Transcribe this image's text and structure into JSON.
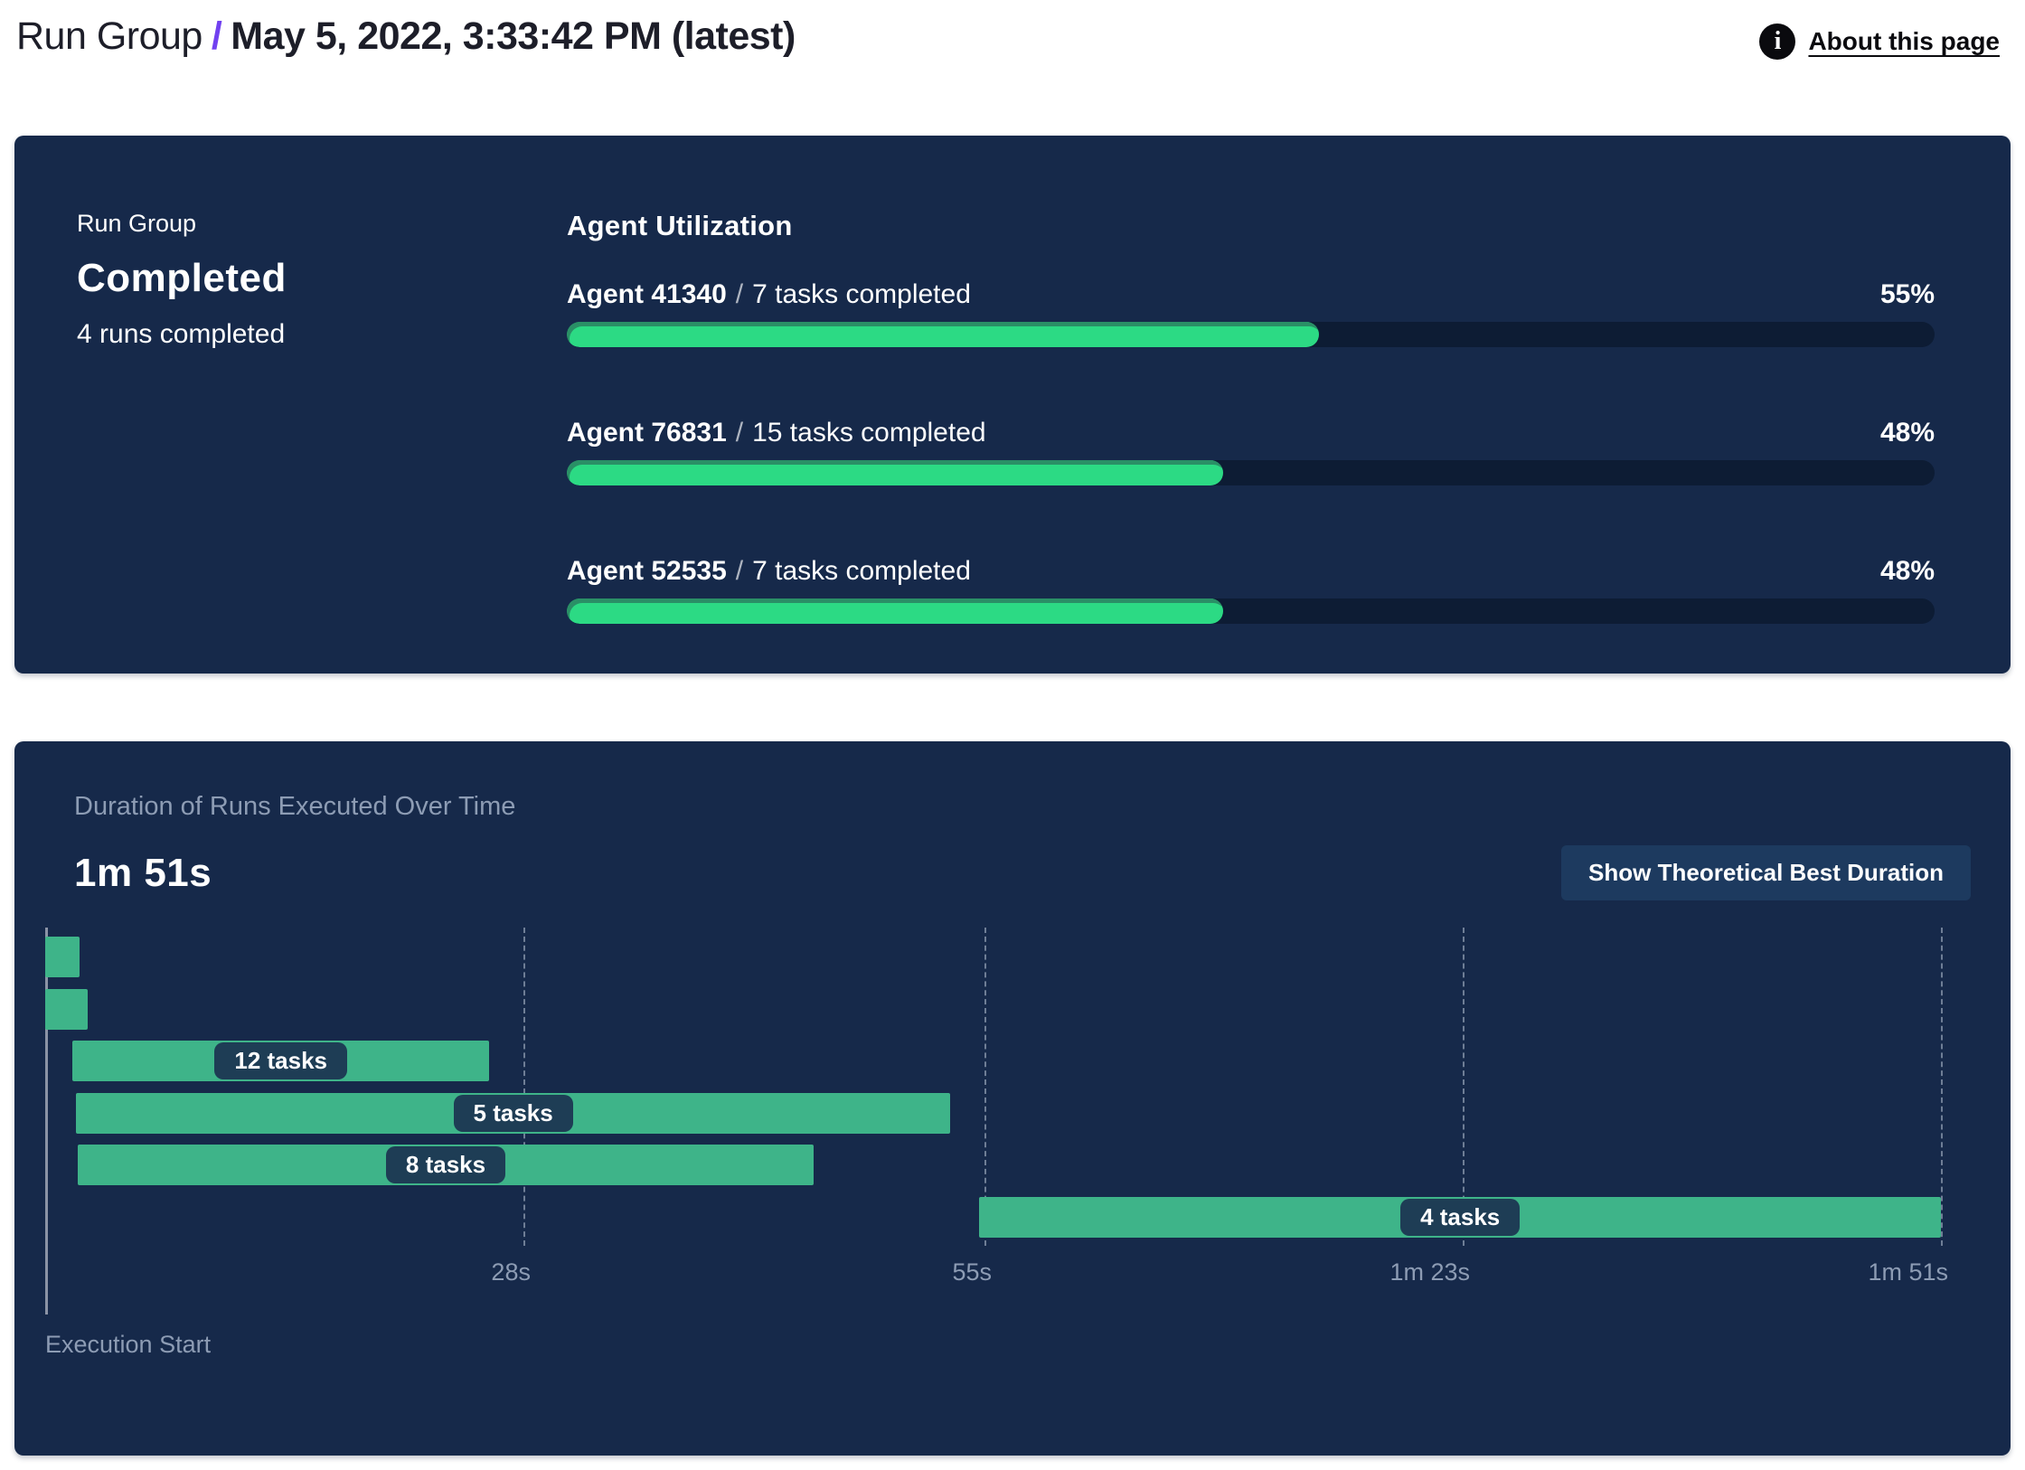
{
  "header": {
    "breadcrumb_root": "Run Group",
    "separator": "/",
    "title": "May 5, 2022, 3:33:42 PM (latest)",
    "about_link": "About this page",
    "info_icon": "info-icon"
  },
  "summary_card": {
    "eyebrow": "Run Group",
    "status": "Completed",
    "subtext": "4 runs completed",
    "utilization_title": "Agent Utilization",
    "agent_separator": "/",
    "agents": [
      {
        "name": "Agent 41340",
        "tasks": "7 tasks completed",
        "percent": 55,
        "percent_label": "55%"
      },
      {
        "name": "Agent 76831",
        "tasks": "15 tasks completed",
        "percent": 48,
        "percent_label": "48%"
      },
      {
        "name": "Agent 52535",
        "tasks": "7 tasks completed",
        "percent": 48,
        "percent_label": "48%"
      }
    ]
  },
  "duration_card": {
    "title": "Duration of Runs Executed Over Time",
    "total_duration": "1m 51s",
    "button_label": "Show Theoretical Best Duration",
    "axis_label": "Execution Start"
  },
  "chart_data": {
    "type": "gantt",
    "title": "Duration of Runs Executed Over Time",
    "total_duration_label": "1m 51s",
    "time_unit": "seconds",
    "x_min": 0,
    "x_max": 111,
    "xlabel": "Execution Start",
    "grid": "dashed-vertical",
    "ticks": [
      {
        "seconds": 28,
        "label": "28s"
      },
      {
        "seconds": 55,
        "label": "55s"
      },
      {
        "seconds": 83,
        "label": "1m 23s"
      },
      {
        "seconds": 111,
        "label": "1m 51s"
      }
    ],
    "runs": [
      {
        "start": 0,
        "end": 2,
        "label": ""
      },
      {
        "start": 0,
        "end": 2.5,
        "label": ""
      },
      {
        "start": 1.6,
        "end": 26,
        "label": "12 tasks"
      },
      {
        "start": 1.8,
        "end": 53,
        "label": "5 tasks"
      },
      {
        "start": 1.9,
        "end": 45,
        "label": "8 tasks"
      },
      {
        "start": 54.7,
        "end": 111,
        "label": "4 tasks"
      }
    ]
  },
  "colors": {
    "card_background": "#16294a",
    "progress_track": "#0d1c34",
    "progress_fill": "#2cda84",
    "progress_fill_shade": "#2a8f66",
    "gantt_bar": "#3eb489",
    "label_pill": "#1e3d55",
    "muted_text": "#8d9cb4",
    "breadcrumb_accent": "#7141f0",
    "button_background": "#1d3a5f"
  }
}
